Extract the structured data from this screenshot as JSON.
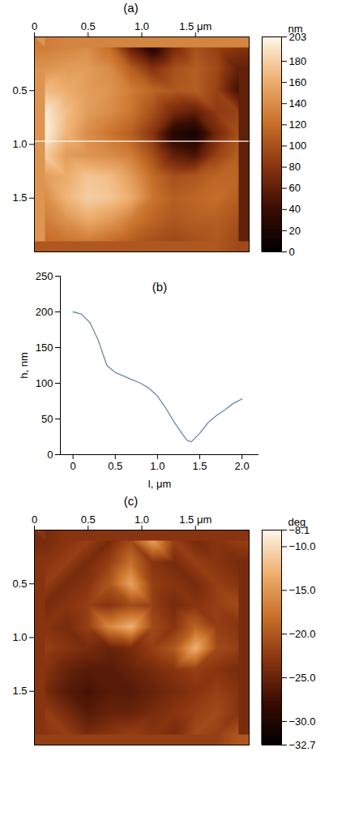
{
  "chart_data": [
    {
      "type": "heatmap",
      "title": "(a)",
      "xlim": [
        0,
        2
      ],
      "ylim": [
        0,
        2
      ],
      "xticks": [
        0,
        0.5,
        {
          "value": 1,
          "label": "1.0"
        },
        {
          "value": 1.5,
          "label": "1.5 μm"
        }
      ],
      "yticks": [
        0.5,
        {
          "value": 1,
          "label": "1.0"
        },
        1.5
      ],
      "x": [
        0.1,
        0.3,
        0.5,
        0.7,
        0.9,
        1.1,
        1.3,
        1.5,
        1.7,
        1.9
      ],
      "y": [
        0.1,
        0.3,
        0.5,
        0.7,
        0.9,
        1.1,
        1.3,
        1.5,
        1.7,
        1.9
      ],
      "z": [
        [
          130,
          135,
          140,
          120,
          60,
          25,
          70,
          100,
          90,
          80
        ],
        [
          145,
          150,
          150,
          140,
          110,
          80,
          100,
          110,
          95,
          60
        ],
        [
          170,
          160,
          150,
          145,
          130,
          115,
          105,
          110,
          90,
          45
        ],
        [
          195,
          170,
          150,
          140,
          125,
          100,
          70,
          60,
          85,
          90
        ],
        [
          200,
          165,
          140,
          125,
          110,
          80,
          25,
          15,
          70,
          100
        ],
        [
          180,
          150,
          145,
          140,
          130,
          100,
          60,
          50,
          90,
          110
        ],
        [
          150,
          160,
          175,
          170,
          150,
          120,
          100,
          105,
          115,
          115
        ],
        [
          140,
          165,
          180,
          175,
          160,
          125,
          110,
          115,
          120,
          110
        ],
        [
          130,
          145,
          160,
          150,
          130,
          115,
          105,
          110,
          110,
          100
        ],
        [
          120,
          125,
          130,
          120,
          110,
          100,
          95,
          100,
          105,
          95
        ]
      ],
      "profile_y": 0.97,
      "colorbar": {
        "label": "nm",
        "range": [
          0,
          203
        ],
        "ticks": [
          0,
          20,
          40,
          60,
          80,
          100,
          120,
          140,
          160,
          180,
          203
        ]
      }
    },
    {
      "type": "line",
      "title": "(b)",
      "x_label": "l, μm",
      "y_label": "h, nm",
      "xlim": [
        -0.15,
        2.2
      ],
      "ylim": [
        0,
        250
      ],
      "xticks": [
        0,
        0.5,
        {
          "value": 1,
          "label": "1.0"
        },
        1.5,
        {
          "value": 2,
          "label": "2.0"
        }
      ],
      "yticks": [
        0,
        50,
        100,
        150,
        200,
        250
      ],
      "color": "#6b8aa8",
      "x": [
        0,
        0.1,
        0.2,
        0.3,
        0.4,
        0.5,
        0.6,
        0.7,
        0.8,
        0.9,
        1.0,
        1.1,
        1.2,
        1.3,
        1.35,
        1.4,
        1.5,
        1.6,
        1.7,
        1.8,
        1.9,
        2.0
      ],
      "values": [
        200,
        197,
        185,
        160,
        125,
        115,
        110,
        105,
        100,
        93,
        82,
        65,
        45,
        28,
        20,
        18,
        30,
        45,
        55,
        63,
        72,
        78
      ]
    },
    {
      "type": "heatmap",
      "title": "(c)",
      "xlim": [
        0,
        2
      ],
      "ylim": [
        0,
        2
      ],
      "xticks": [
        0,
        0.5,
        {
          "value": 1,
          "label": "1.0"
        },
        {
          "value": 1.5,
          "label": "1.5 μm"
        }
      ],
      "yticks": [
        0.5,
        {
          "value": 1,
          "label": "1.0"
        },
        1.5
      ],
      "x": [
        0.1,
        0.3,
        0.5,
        0.7,
        0.9,
        1.1,
        1.3,
        1.5,
        1.7,
        1.9
      ],
      "y": [
        0.1,
        0.3,
        0.5,
        0.7,
        0.9,
        1.1,
        1.3,
        1.5,
        1.7,
        1.9
      ],
      "z": [
        [
          -24,
          -23,
          -22,
          -24,
          -21,
          -14,
          -22,
          -24,
          -23,
          -22
        ],
        [
          -23,
          -22,
          -24,
          -22,
          -18,
          -23,
          -24,
          -22,
          -23,
          -24
        ],
        [
          -22,
          -24,
          -23,
          -20,
          -14,
          -22,
          -23,
          -24,
          -22,
          -23
        ],
        [
          -24,
          -23,
          -22,
          -23,
          -21,
          -22,
          -24,
          -23,
          -22,
          -21
        ],
        [
          -23,
          -24,
          -22,
          -16,
          -13,
          -21,
          -23,
          -19,
          -22,
          -23
        ],
        [
          -22,
          -23,
          -24,
          -25,
          -24,
          -22,
          -20,
          -13,
          -21,
          -22
        ],
        [
          -23,
          -25,
          -26,
          -26,
          -25,
          -24,
          -23,
          -22,
          -23,
          -24
        ],
        [
          -24,
          -26,
          -27,
          -26,
          -26,
          -25,
          -24,
          -23,
          -22,
          -23
        ],
        [
          -22,
          -24,
          -26,
          -25,
          -25,
          -24,
          -23,
          -22,
          -21,
          -23
        ],
        [
          -23,
          -22,
          -24,
          -23,
          -22,
          -23,
          -24,
          -21,
          -22,
          -20
        ]
      ],
      "colorbar": {
        "label": "deg",
        "range": [
          -32.7,
          -8.1
        ],
        "ticks": [
          {
            "value": -8.1,
            "label": "−8.1"
          },
          {
            "value": -10,
            "label": "−10.0"
          },
          {
            "value": -15,
            "label": "−15.0"
          },
          {
            "value": -20,
            "label": "−20.0"
          },
          {
            "value": -25,
            "label": "−25.0"
          },
          {
            "value": -30,
            "label": "−30.0"
          },
          {
            "value": -32.7,
            "label": "−32.7"
          }
        ]
      }
    }
  ]
}
